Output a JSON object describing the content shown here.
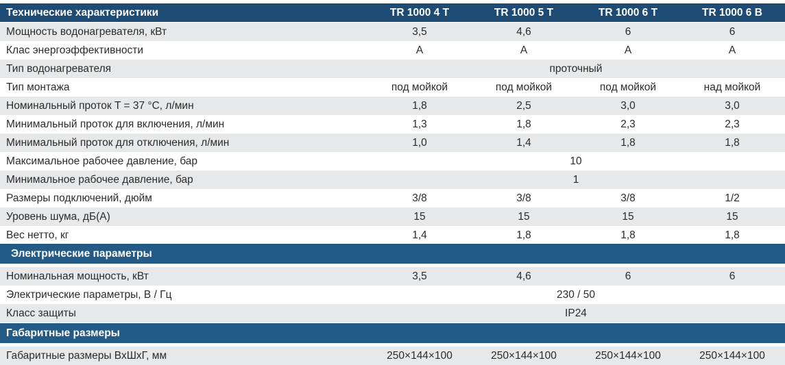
{
  "header": {
    "title": "Технические характеристики",
    "columns": [
      "TR 1000 4 T",
      "TR 1000 5 T",
      "TR 1000 6 T",
      "TR 1000 6 B"
    ]
  },
  "rows": [
    {
      "label": "Мощность водонагревателя, кВт",
      "values": [
        "3,5",
        "4,6",
        "6",
        "6"
      ]
    },
    {
      "label": "Клас энергоэффективности",
      "values": [
        "A",
        "A",
        "A",
        "A"
      ]
    },
    {
      "label": "Тип водонагревателя",
      "value": "проточный"
    },
    {
      "label": "Тип монтажа",
      "values": [
        "под мойкой",
        "под мойкой",
        "под мойкой",
        "над мойкой"
      ]
    },
    {
      "label": "Номинальный проток T = 37 °C, л/мин",
      "values": [
        "1,8",
        "2,5",
        "3,0",
        "3,0"
      ]
    },
    {
      "label": "Минимальный проток для включения, л/мин",
      "values": [
        "1,3",
        "1,8",
        "2,3",
        "2,3"
      ]
    },
    {
      "label": "Минимальный проток для отключения, л/мин",
      "values": [
        "1,0",
        "1,4",
        "1,8",
        "1,8"
      ]
    },
    {
      "label": "Максимальное рабочее давление, бар",
      "value": "10"
    },
    {
      "label": "Минимальное рабочее давление, бар",
      "value": "1"
    },
    {
      "label": "Размеры подключений, дюйм",
      "values": [
        "3/8",
        "3/8",
        "3/8",
        "1/2"
      ]
    },
    {
      "label": "Уровень шума, дБ(А)",
      "values": [
        "15",
        "15",
        "15",
        "15"
      ]
    },
    {
      "label": "Вес нетто, кг",
      "values": [
        "1,4",
        "1,8",
        "1,8",
        "1,8"
      ]
    }
  ],
  "sections": [
    {
      "title": "Электрические параметры",
      "rows": [
        {
          "label": "Номинальная мощность, кВт",
          "values": [
            "3,5",
            "4,6",
            "6",
            "6"
          ]
        },
        {
          "label": "Электрические параметры, В / Гц",
          "value": "230 / 50"
        },
        {
          "label": "Класс защиты",
          "value": "IP24"
        }
      ]
    },
    {
      "title": "Габаритные размеры",
      "rows": [
        {
          "label": "Габаритные размеры ВхШхГ, мм",
          "values": [
            "250×144×100",
            "250×144×100",
            "250×144×100",
            "250×144×100"
          ]
        }
      ]
    }
  ]
}
